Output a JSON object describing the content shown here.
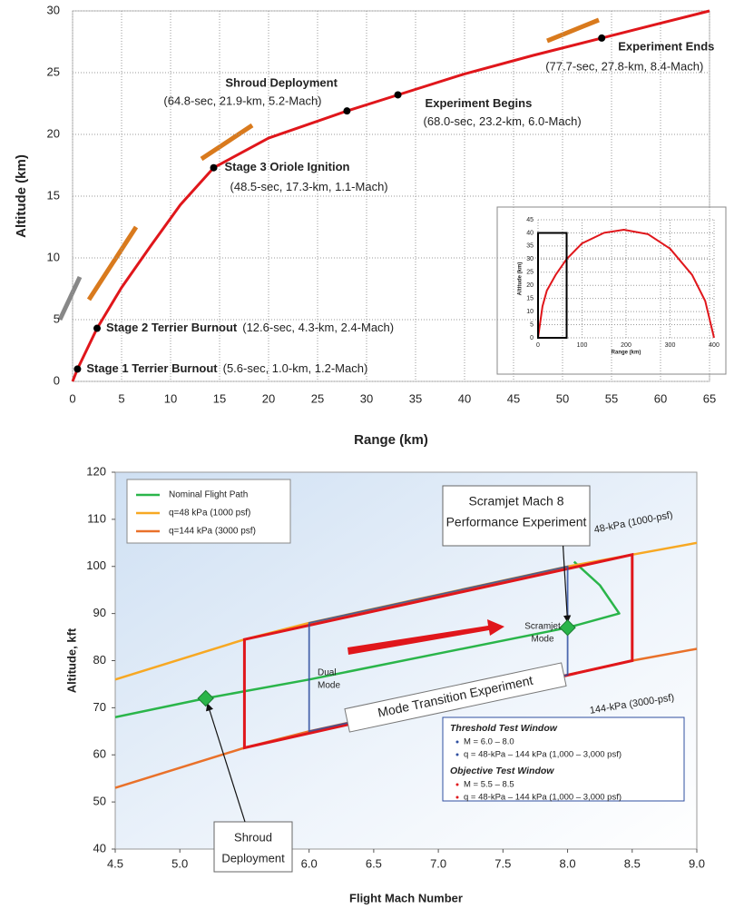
{
  "chart_data": [
    {
      "type": "line",
      "x_label": "Range (km)",
      "y_label": "Altitude (km)",
      "xlim": [
        0,
        65
      ],
      "ylim": [
        0,
        30
      ],
      "xticks": [
        0,
        5,
        10,
        15,
        20,
        25,
        30,
        35,
        40,
        45,
        50,
        55,
        60,
        65
      ],
      "yticks": [
        0,
        5,
        10,
        15,
        20,
        25,
        30
      ],
      "grid": true,
      "series": [
        {
          "color": "#e0161b",
          "x": [
            0,
            0.5,
            2.5,
            5,
            8,
            11,
            14.4,
            20,
            28,
            33.2,
            40,
            47,
            54,
            60,
            65
          ],
          "values": [
            0,
            1.0,
            4.3,
            7.6,
            11,
            14.3,
            17.3,
            19.7,
            21.9,
            23.2,
            24.9,
            26.4,
            27.8,
            29,
            30
          ]
        }
      ],
      "annotations": [
        {
          "x": 0.5,
          "y": 1.0,
          "label": "Stage 1 Terrier Burnout",
          "detail": "(5.6-sec, 1.0-km, 1.2-Mach)"
        },
        {
          "x": 2.5,
          "y": 4.3,
          "label": "Stage 2 Terrier Burnout",
          "detail": "(12.6-sec, 4.3-km, 2.4-Mach)"
        },
        {
          "x": 14.4,
          "y": 17.3,
          "label": "Stage 3 Oriole Ignition",
          "detail": "(48.5-sec, 17.3-km, 1.1-Mach)"
        },
        {
          "x": 28,
          "y": 21.9,
          "label": "Shroud Deployment",
          "detail": "(64.8-sec, 21.9-km, 5.2-Mach)"
        },
        {
          "x": 33.2,
          "y": 23.2,
          "label": "Experiment Begins",
          "detail": "(68.0-sec, 23.2-km, 6.0-Mach)"
        },
        {
          "x": 54,
          "y": 27.8,
          "label": "Experiment Ends",
          "detail": "(77.7-sec, 27.8-km, 8.4-Mach)"
        }
      ],
      "inset": {
        "type": "line",
        "x_label": "Range (km)",
        "y_label": "Altitude (km)",
        "xlim": [
          0,
          400
        ],
        "ylim": [
          0,
          45
        ],
        "xticks": [
          0,
          100,
          200,
          300,
          400
        ],
        "yticks": [
          0,
          5,
          10,
          15,
          20,
          25,
          30,
          35,
          40,
          45
        ],
        "grid": true,
        "series": [
          {
            "color": "#e0161b",
            "x": [
              0,
              10,
              20,
              40,
              65,
              100,
              150,
              195,
              250,
              300,
              350,
              380,
              400
            ],
            "values": [
              0,
              12,
              18,
              24,
              30,
              36,
              40,
              41.2,
              39.5,
              34,
              24,
              14,
              0
            ]
          }
        ],
        "zoom_box": {
          "x": [
            0,
            65
          ],
          "y": [
            0,
            40
          ]
        }
      }
    },
    {
      "type": "line",
      "x_label": "Flight Mach Number",
      "y_label": "Altitude, kft",
      "xlim": [
        4.5,
        9
      ],
      "ylim": [
        40,
        120
      ],
      "xticks": [
        4.5,
        {
          "value": 5,
          "label": "5.0"
        },
        5.5,
        {
          "value": 6,
          "label": "6.0"
        },
        6.5,
        {
          "value": 7,
          "label": "7.0"
        },
        7.5,
        {
          "value": 8,
          "label": "8.0"
        },
        8.5,
        {
          "value": 9,
          "label": "9.0"
        }
      ],
      "yticks": [
        40,
        50,
        60,
        70,
        80,
        90,
        100,
        110,
        120
      ],
      "legend": "upper left",
      "series": [
        {
          "name": "Nominal Flight Path",
          "color": "#2ab54a",
          "x": [
            4.5,
            5.2,
            6,
            7,
            8,
            8.4,
            8.25,
            8.05
          ],
          "values": [
            68,
            72,
            76,
            81.5,
            87,
            90,
            96,
            101
          ]
        },
        {
          "name": "q=48 kPa (1000 psf)",
          "color": "#f7a823",
          "x": [
            4.5,
            5.5,
            6,
            7,
            8,
            8.5,
            9
          ],
          "values": [
            76,
            84.5,
            88,
            94,
            100,
            102.5,
            105
          ]
        },
        {
          "name": "q=144 kPa (3000 psf)",
          "color": "#e9712a",
          "x": [
            4.5,
            5.5,
            6,
            7,
            8,
            8.5,
            9
          ],
          "values": [
            53,
            61.5,
            65,
            71,
            77,
            80,
            82.5
          ]
        }
      ],
      "windows": [
        {
          "name": "Objective Test Window",
          "color": "#e0161b",
          "items": [
            "M = 5.5 – 8.5",
            "q = 48-kPa – 144 kPa (1,000 – 3,000 psf)"
          ],
          "x": [
            5.5,
            5.5,
            8.5,
            8.5
          ],
          "y": [
            61.5,
            84.5,
            102.5,
            80
          ]
        },
        {
          "name": "Threshold Test Window",
          "color": "#2f4fa0",
          "items": [
            "M = 6.0 – 8.0",
            "q = 48-kPa – 144 kPa (1,000 – 3,000 psf)"
          ],
          "x": [
            6,
            6,
            8,
            8
          ],
          "y": [
            65,
            88,
            100,
            77
          ]
        }
      ],
      "markers": [
        {
          "x": 5.2,
          "y": 72,
          "label": [
            "Shroud",
            "Deployment"
          ]
        },
        {
          "x": 8,
          "y": 87,
          "label": [
            "Scramjet Mach 8",
            "Performance Experiment"
          ]
        }
      ],
      "annotations": [
        [
          "48-kPa (1000-psf)"
        ],
        [
          "144-kPa (3000-psf)"
        ],
        [
          "Scramjet",
          "Mode"
        ],
        [
          "Dual",
          "Mode"
        ],
        [
          "Mode Transition Experiment"
        ]
      ]
    }
  ]
}
